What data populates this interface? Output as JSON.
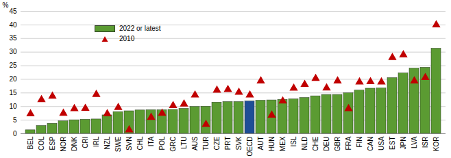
{
  "chart_data": {
    "type": "bar",
    "categories": [
      "BEL",
      "COL",
      "ESP",
      "NOR",
      "DNK",
      "CRI",
      "IRL",
      "NZL",
      "SWE",
      "SVN",
      "CHL",
      "ITA",
      "POL",
      "GRC",
      "LTU",
      "AUS",
      "TUR",
      "CZE",
      "PRT",
      "SVK",
      "OECD",
      "AUT",
      "HUN",
      "MEX",
      "ISL",
      "NLD",
      "CHE",
      "DEU",
      "GBR",
      "FRA",
      "FIN",
      "CAN",
      "USA",
      "EST",
      "JPN",
      "LVA",
      "ISR",
      "KOR"
    ],
    "series": [
      {
        "name": "2022 or latest",
        "type": "bar",
        "color": "#5b9b32",
        "colors": [
          "#5b9b32",
          "#5b9b32",
          "#5b9b32",
          "#5b9b32",
          "#5b9b32",
          "#5b9b32",
          "#5b9b32",
          "#5b9b32",
          "#5b9b32",
          "#5b9b32",
          "#5b9b32",
          "#5b9b32",
          "#5b9b32",
          "#5b9b32",
          "#5b9b32",
          "#5b9b32",
          "#5b9b32",
          "#5b9b32",
          "#5b9b32",
          "#5b9b32",
          "#1f4e96",
          "#5b9b32",
          "#5b9b32",
          "#5b9b32",
          "#5b9b32",
          "#5b9b32",
          "#5b9b32",
          "#5b9b32",
          "#5b9b32",
          "#5b9b32",
          "#5b9b32",
          "#5b9b32",
          "#5b9b32",
          "#5b9b32",
          "#5b9b32",
          "#5b9b32",
          "#5b9b32",
          "#5b9b32"
        ],
        "values": [
          1.3,
          2.9,
          3.7,
          4.6,
          5.0,
          5.2,
          5.3,
          6.8,
          8.0,
          8.3,
          8.6,
          8.7,
          8.7,
          8.8,
          9.2,
          9.9,
          10.0,
          11.5,
          11.7,
          11.7,
          11.9,
          12.2,
          12.3,
          12.5,
          12.7,
          13.2,
          13.8,
          14.3,
          14.3,
          14.9,
          15.9,
          16.6,
          16.7,
          20.5,
          22.2,
          24.0,
          24.3,
          31.3
        ]
      },
      {
        "name": "2010",
        "type": "scatter",
        "marker": "triangle",
        "color": "#c00000",
        "values": [
          7.3,
          12.5,
          13.8,
          7.5,
          9.2,
          9.3,
          14.4,
          7.3,
          9.6,
          1.4,
          null,
          6.0,
          7.5,
          10.3,
          10.9,
          14.2,
          3.4,
          16.0,
          16.2,
          15.2,
          14.2,
          19.4,
          6.8,
          12.0,
          16.7,
          18.1,
          20.3,
          16.8,
          19.4,
          9.2,
          19.0,
          19.1,
          19.0,
          28.0,
          29.0,
          19.4,
          20.6,
          40.0
        ]
      }
    ],
    "y_label": "%",
    "ylim": [
      0,
      45
    ],
    "yticks": [
      0,
      5,
      10,
      15,
      20,
      25,
      30,
      35,
      40,
      45
    ],
    "grid": true,
    "legend": "top-left"
  }
}
